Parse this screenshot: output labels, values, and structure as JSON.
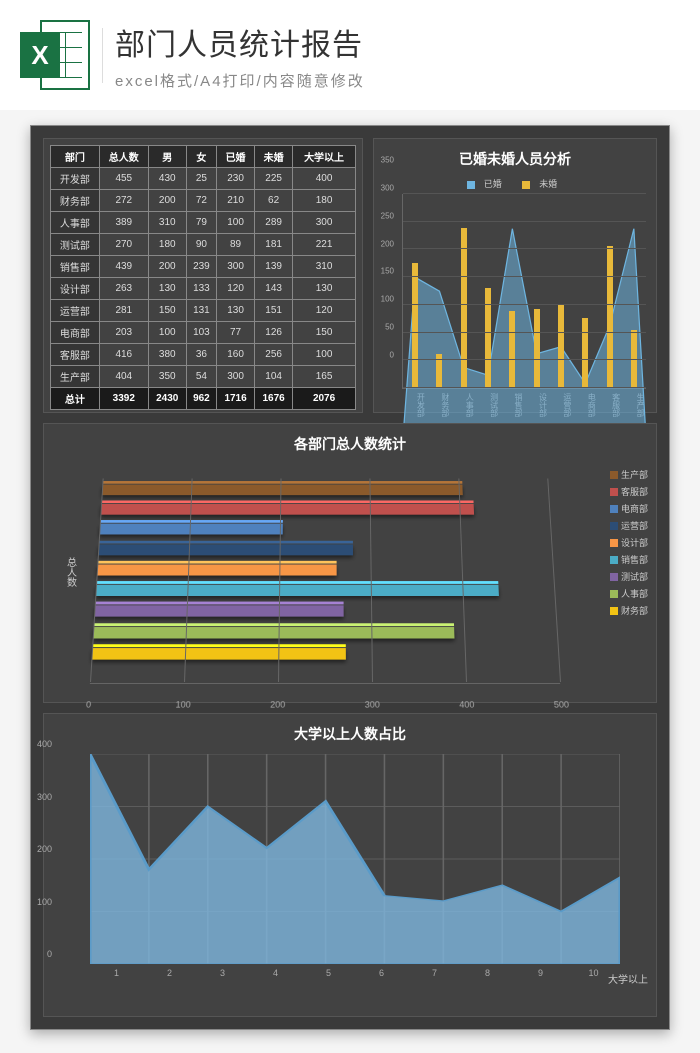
{
  "header": {
    "icon_letter": "X",
    "title": "部门人员统计报告",
    "subtitle": "excel格式/A4打印/内容随意修改",
    "icon_green": "#1a7243"
  },
  "background_color": "#3a3a3a",
  "panel_color": "#424242",
  "table": {
    "columns": [
      "部门",
      "总人数",
      "男",
      "女",
      "已婚",
      "未婚",
      "大学以上"
    ],
    "rows": [
      [
        "开发部",
        455,
        430,
        25,
        230,
        225,
        400
      ],
      [
        "财务部",
        272,
        200,
        72,
        210,
        62,
        180
      ],
      [
        "人事部",
        389,
        310,
        79,
        100,
        289,
        300
      ],
      [
        "测试部",
        270,
        180,
        90,
        89,
        181,
        221
      ],
      [
        "销售部",
        439,
        200,
        239,
        300,
        139,
        310
      ],
      [
        "设计部",
        263,
        130,
        133,
        120,
        143,
        130
      ],
      [
        "运营部",
        281,
        150,
        131,
        130,
        151,
        120
      ],
      [
        "电商部",
        203,
        100,
        103,
        77,
        126,
        150
      ],
      [
        "客服部",
        416,
        380,
        36,
        160,
        256,
        100
      ],
      [
        "生产部",
        404,
        350,
        54,
        300,
        104,
        165
      ]
    ],
    "footer": [
      "总计",
      3392,
      2430,
      962,
      1716,
      1676,
      2076
    ]
  },
  "chart1": {
    "type": "bar+area",
    "title": "已婚未婚人员分析",
    "legend": [
      {
        "label": "已婚",
        "color": "#6eb5e0"
      },
      {
        "label": "未婚",
        "color": "#e8b93a"
      }
    ],
    "categories": [
      "开发部",
      "财务部",
      "人事部",
      "测试部",
      "销售部",
      "设计部",
      "运营部",
      "电商部",
      "客服部",
      "生产部"
    ],
    "married": [
      230,
      210,
      100,
      89,
      300,
      120,
      130,
      77,
      160,
      300
    ],
    "unmarried": [
      225,
      62,
      289,
      181,
      139,
      143,
      151,
      126,
      256,
      104
    ],
    "ylim": [
      0,
      350
    ],
    "ytick_step": 50,
    "area_color": "#6eb5e0",
    "bar_color": "#e8b93a",
    "grid_color": "#555555",
    "text_color": "#cccccc",
    "label_fontsize": 8
  },
  "chart2": {
    "type": "3d-horizontal-bar",
    "title": "各部门总人数统计",
    "ylabel": "总人数",
    "categories": [
      "生产部",
      "客服部",
      "电商部",
      "运营部",
      "设计部",
      "销售部",
      "测试部",
      "人事部",
      "财务部"
    ],
    "values": [
      404,
      416,
      203,
      281,
      263,
      439,
      270,
      389,
      272
    ],
    "colors": [
      "#8b5a2b",
      "#c0504d",
      "#4f81bd",
      "#2c4d75",
      "#f79646",
      "#4bacc6",
      "#8064a2",
      "#9bbb59",
      "#f2c314"
    ],
    "xlim": [
      0,
      500
    ],
    "xtick_step": 100,
    "ref_value": 455,
    "legend_fontsize": 9,
    "grid_color": "#666666"
  },
  "chart3": {
    "type": "3d-area",
    "title": "大学以上人数占比",
    "x": [
      1,
      2,
      3,
      4,
      5,
      6,
      7,
      8,
      9,
      10
    ],
    "values": [
      400,
      180,
      300,
      221,
      310,
      130,
      120,
      150,
      100,
      165
    ],
    "ylim": [
      0,
      400
    ],
    "ytick_step": 100,
    "fill_color": "#7eb6de",
    "stroke_color": "#5a9bc9",
    "grid_color": "#666666",
    "right_label": "大学以上",
    "label_fontsize": 9
  }
}
